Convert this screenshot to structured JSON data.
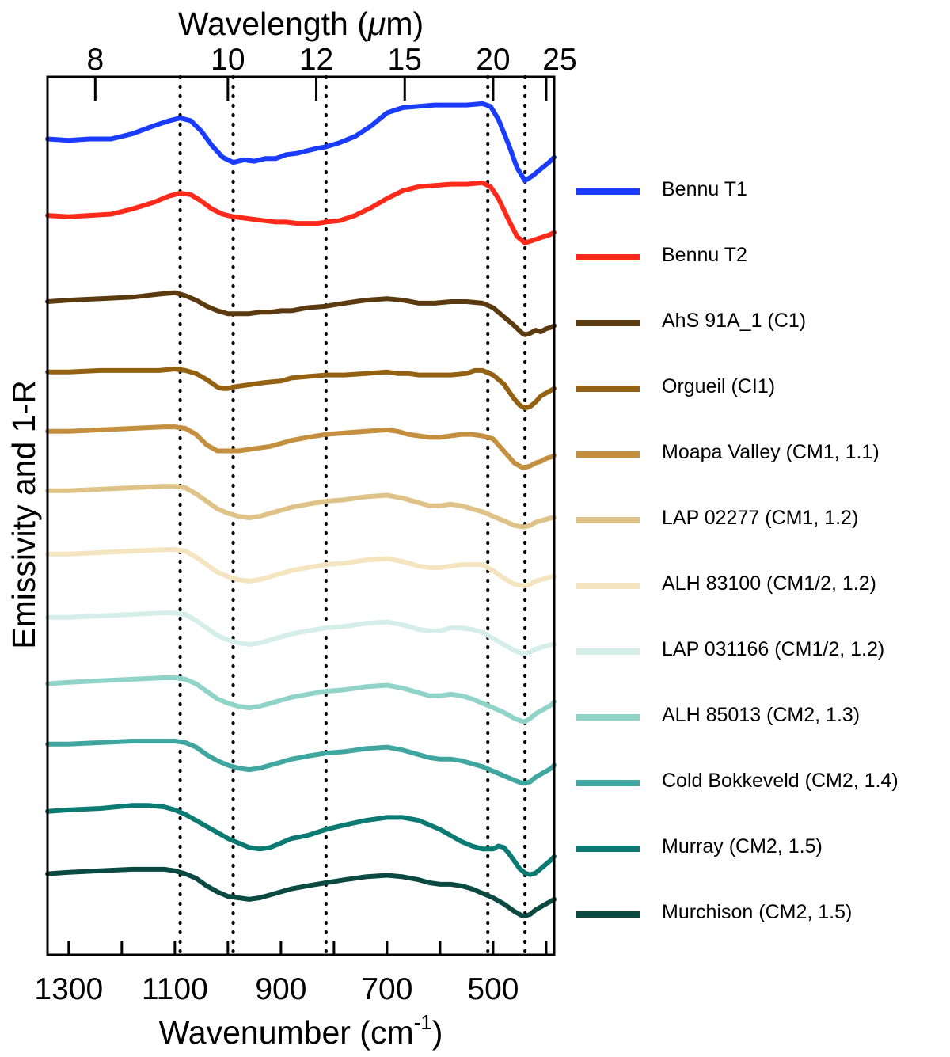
{
  "chart_data": {
    "type": "line",
    "title": "",
    "xlabel_bottom_base": "Wavenumber (cm",
    "xlabel_bottom_sup": "-1",
    "xlabel_bottom_end": ")",
    "xlabel_top_base": "Wavelength (",
    "xlabel_top_mu": "μ",
    "xlabel_top_end": "m)",
    "ylabel": "Emissivity and 1-R",
    "xlim": [
      1340,
      385
    ],
    "x_ticks": [
      1300,
      1100,
      900,
      700,
      500
    ],
    "top_ticks": [
      8,
      10,
      12,
      15,
      20,
      25
    ],
    "reference_lines_cm1": [
      1090,
      990,
      815,
      510,
      440
    ],
    "y_axis_ticks": "none (stacked, offset spectra)",
    "series": [
      {
        "name": "Bennu T1",
        "color": "#1a3cff",
        "x": [
          1340,
          1300,
          1260,
          1220,
          1180,
          1140,
          1110,
          1090,
          1070,
          1050,
          1030,
          1010,
          990,
          970,
          950,
          930,
          910,
          890,
          870,
          850,
          830,
          815,
          790,
          760,
          730,
          700,
          670,
          640,
          610,
          580,
          550,
          520,
          505,
          490,
          470,
          455,
          440,
          425,
          410,
          395,
          385
        ],
        "y": [
          0.3,
          0.29,
          0.3,
          0.3,
          0.34,
          0.4,
          0.44,
          0.46,
          0.44,
          0.36,
          0.25,
          0.16,
          0.12,
          0.14,
          0.13,
          0.15,
          0.15,
          0.18,
          0.19,
          0.21,
          0.23,
          0.24,
          0.27,
          0.32,
          0.4,
          0.5,
          0.54,
          0.55,
          0.56,
          0.56,
          0.56,
          0.57,
          0.55,
          0.45,
          0.25,
          0.08,
          -0.02,
          0.02,
          0.07,
          0.12,
          0.16
        ]
      },
      {
        "name": "Bennu T2",
        "color": "#ff2a1a",
        "x": [
          1340,
          1300,
          1260,
          1220,
          1180,
          1140,
          1110,
          1090,
          1070,
          1050,
          1030,
          1010,
          990,
          970,
          950,
          930,
          910,
          890,
          870,
          850,
          830,
          815,
          790,
          760,
          730,
          700,
          670,
          640,
          610,
          580,
          550,
          520,
          505,
          490,
          470,
          455,
          440,
          425,
          410,
          395,
          385
        ],
        "y": [
          0.29,
          0.28,
          0.29,
          0.3,
          0.34,
          0.39,
          0.44,
          0.46,
          0.45,
          0.4,
          0.34,
          0.3,
          0.28,
          0.27,
          0.26,
          0.25,
          0.24,
          0.24,
          0.23,
          0.23,
          0.23,
          0.24,
          0.25,
          0.29,
          0.35,
          0.42,
          0.48,
          0.51,
          0.52,
          0.53,
          0.53,
          0.54,
          0.51,
          0.42,
          0.25,
          0.13,
          0.08,
          0.1,
          0.12,
          0.14,
          0.16
        ]
      },
      {
        "name": "AhS 91A_1 (C1)",
        "color": "#5a3a0e",
        "x": [
          1340,
          1300,
          1240,
          1180,
          1130,
          1100,
          1080,
          1060,
          1040,
          1020,
          1000,
          980,
          960,
          940,
          920,
          900,
          880,
          850,
          815,
          780,
          740,
          700,
          670,
          640,
          610,
          580,
          550,
          520,
          500,
          480,
          460,
          445,
          440,
          430,
          420,
          410,
          400,
          390,
          385
        ],
        "y": [
          0.1,
          0.11,
          0.12,
          0.13,
          0.15,
          0.16,
          0.14,
          0.11,
          0.07,
          0.04,
          0.02,
          0.02,
          0.02,
          0.03,
          0.03,
          0.04,
          0.04,
          0.06,
          0.07,
          0.09,
          0.11,
          0.12,
          0.11,
          0.09,
          0.09,
          0.1,
          0.1,
          0.09,
          0.06,
          0.0,
          -0.06,
          -0.11,
          -0.12,
          -0.11,
          -0.09,
          -0.1,
          -0.08,
          -0.07,
          -0.06
        ]
      },
      {
        "name": "Orgueil (CI1)",
        "color": "#946012",
        "x": [
          1340,
          1300,
          1240,
          1180,
          1130,
          1100,
          1080,
          1060,
          1040,
          1020,
          1010,
          1000,
          990,
          970,
          950,
          930,
          900,
          880,
          850,
          815,
          780,
          740,
          700,
          680,
          660,
          640,
          610,
          580,
          550,
          535,
          520,
          500,
          480,
          460,
          450,
          440,
          430,
          420,
          410,
          400,
          390,
          385
        ],
        "y": [
          0.08,
          0.08,
          0.09,
          0.09,
          0.09,
          0.1,
          0.09,
          0.07,
          0.03,
          -0.02,
          -0.03,
          -0.03,
          -0.02,
          -0.01,
          0.0,
          0.01,
          0.02,
          0.04,
          0.05,
          0.06,
          0.06,
          0.07,
          0.08,
          0.07,
          0.07,
          0.06,
          0.06,
          0.06,
          0.07,
          0.09,
          0.09,
          0.06,
          0.0,
          -0.1,
          -0.14,
          -0.16,
          -0.15,
          -0.12,
          -0.08,
          -0.06,
          -0.04,
          -0.03
        ]
      },
      {
        "name": "Moapa Valley (CM1, 1.1)",
        "color": "#c48f3e",
        "x": [
          1340,
          1300,
          1240,
          1180,
          1120,
          1100,
          1080,
          1060,
          1040,
          1020,
          1000,
          990,
          980,
          960,
          940,
          920,
          900,
          880,
          850,
          815,
          780,
          740,
          700,
          680,
          660,
          640,
          620,
          600,
          580,
          560,
          540,
          520,
          500,
          480,
          460,
          445,
          440,
          430,
          420,
          410,
          400,
          390,
          385
        ],
        "y": [
          0.08,
          0.08,
          0.09,
          0.1,
          0.11,
          0.11,
          0.1,
          0.06,
          -0.01,
          -0.05,
          -0.05,
          -0.05,
          -0.05,
          -0.04,
          -0.03,
          -0.02,
          0.0,
          0.02,
          0.04,
          0.06,
          0.07,
          0.08,
          0.09,
          0.08,
          0.06,
          0.05,
          0.04,
          0.04,
          0.05,
          0.06,
          0.06,
          0.05,
          0.03,
          -0.05,
          -0.13,
          -0.16,
          -0.16,
          -0.15,
          -0.13,
          -0.12,
          -0.1,
          -0.09,
          -0.08
        ]
      },
      {
        "name": "LAP 02277 (CM1, 1.2)",
        "color": "#dfc288",
        "x": [
          1340,
          1300,
          1240,
          1180,
          1120,
          1100,
          1080,
          1060,
          1040,
          1020,
          1000,
          980,
          960,
          940,
          920,
          900,
          880,
          850,
          815,
          780,
          740,
          700,
          670,
          640,
          620,
          600,
          580,
          560,
          540,
          520,
          500,
          480,
          460,
          445,
          440,
          430,
          420,
          410,
          400,
          390,
          385
        ],
        "y": [
          0.08,
          0.08,
          0.09,
          0.1,
          0.11,
          0.11,
          0.1,
          0.06,
          0.01,
          -0.04,
          -0.07,
          -0.09,
          -0.1,
          -0.09,
          -0.07,
          -0.05,
          -0.03,
          -0.01,
          0.01,
          0.02,
          0.04,
          0.05,
          0.03,
          0.0,
          -0.02,
          -0.02,
          -0.01,
          -0.02,
          -0.04,
          -0.06,
          -0.09,
          -0.12,
          -0.15,
          -0.16,
          -0.16,
          -0.15,
          -0.13,
          -0.12,
          -0.11,
          -0.1,
          -0.1
        ]
      },
      {
        "name": "ALH 83100 (CM1/2, 1.2)",
        "color": "#f5e4c0",
        "x": [
          1340,
          1300,
          1240,
          1180,
          1120,
          1100,
          1080,
          1060,
          1040,
          1020,
          1000,
          980,
          960,
          940,
          920,
          900,
          880,
          850,
          815,
          780,
          740,
          700,
          670,
          640,
          620,
          600,
          580,
          560,
          540,
          520,
          500,
          480,
          460,
          445,
          440,
          430,
          420,
          410,
          400,
          390,
          385
        ],
        "y": [
          0.08,
          0.08,
          0.09,
          0.1,
          0.11,
          0.11,
          0.1,
          0.06,
          0.01,
          -0.04,
          -0.07,
          -0.09,
          -0.1,
          -0.09,
          -0.07,
          -0.05,
          -0.03,
          -0.01,
          0.01,
          0.02,
          0.04,
          0.05,
          0.03,
          0.0,
          -0.01,
          -0.01,
          0.0,
          0.01,
          0.01,
          0.01,
          -0.03,
          -0.08,
          -0.12,
          -0.13,
          -0.13,
          -0.12,
          -0.1,
          -0.09,
          -0.08,
          -0.07,
          -0.07
        ]
      },
      {
        "name": "LAP 031166 (CM1/2, 1.2)",
        "color": "#d6eee9",
        "x": [
          1340,
          1300,
          1240,
          1180,
          1120,
          1100,
          1080,
          1060,
          1040,
          1020,
          1000,
          980,
          960,
          940,
          920,
          900,
          880,
          850,
          815,
          780,
          740,
          700,
          670,
          640,
          620,
          600,
          580,
          560,
          540,
          520,
          500,
          480,
          460,
          445,
          440,
          430,
          420,
          410,
          400,
          390,
          385
        ],
        "y": [
          0.08,
          0.08,
          0.09,
          0.1,
          0.11,
          0.11,
          0.1,
          0.06,
          0.01,
          -0.04,
          -0.07,
          -0.09,
          -0.1,
          -0.09,
          -0.07,
          -0.05,
          -0.03,
          -0.01,
          0.01,
          0.02,
          0.04,
          0.05,
          0.03,
          0.0,
          -0.01,
          -0.01,
          0.01,
          0.01,
          0.0,
          -0.02,
          -0.06,
          -0.1,
          -0.14,
          -0.16,
          -0.16,
          -0.15,
          -0.13,
          -0.12,
          -0.11,
          -0.1,
          -0.1
        ]
      },
      {
        "name": "ALH 85013 (CM2, 1.3)",
        "color": "#8fd3c9",
        "x": [
          1340,
          1300,
          1240,
          1180,
          1120,
          1100,
          1080,
          1060,
          1040,
          1020,
          1000,
          980,
          960,
          940,
          920,
          900,
          880,
          850,
          815,
          780,
          740,
          700,
          670,
          640,
          620,
          600,
          580,
          560,
          540,
          520,
          500,
          480,
          460,
          445,
          440,
          430,
          420,
          410,
          400,
          390,
          385
        ],
        "y": [
          0.06,
          0.07,
          0.08,
          0.09,
          0.1,
          0.1,
          0.09,
          0.06,
          0.01,
          -0.04,
          -0.07,
          -0.09,
          -0.1,
          -0.09,
          -0.07,
          -0.05,
          -0.03,
          -0.01,
          0.01,
          0.02,
          0.04,
          0.05,
          0.03,
          0.0,
          -0.02,
          -0.02,
          -0.01,
          -0.02,
          -0.04,
          -0.07,
          -0.1,
          -0.13,
          -0.17,
          -0.19,
          -0.19,
          -0.17,
          -0.14,
          -0.12,
          -0.1,
          -0.08,
          -0.06
        ]
      },
      {
        "name": "Cold Bokkeveld (CM2, 1.4)",
        "color": "#3fa6a0",
        "x": [
          1340,
          1300,
          1240,
          1180,
          1120,
          1100,
          1080,
          1060,
          1040,
          1020,
          1000,
          980,
          960,
          940,
          920,
          900,
          880,
          850,
          815,
          780,
          740,
          700,
          670,
          640,
          620,
          600,
          580,
          560,
          540,
          520,
          500,
          480,
          460,
          445,
          440,
          430,
          420,
          410,
          400,
          390,
          385
        ],
        "y": [
          0.08,
          0.08,
          0.09,
          0.1,
          0.1,
          0.1,
          0.09,
          0.06,
          0.01,
          -0.03,
          -0.06,
          -0.08,
          -0.09,
          -0.08,
          -0.06,
          -0.04,
          -0.02,
          0.0,
          0.02,
          0.03,
          0.05,
          0.06,
          0.04,
          0.01,
          -0.01,
          -0.02,
          -0.02,
          -0.03,
          -0.05,
          -0.07,
          -0.1,
          -0.13,
          -0.16,
          -0.18,
          -0.18,
          -0.17,
          -0.14,
          -0.12,
          -0.1,
          -0.08,
          -0.06
        ]
      },
      {
        "name": "Murray (CM2, 1.5)",
        "color": "#0b7a72",
        "x": [
          1340,
          1300,
          1240,
          1180,
          1150,
          1120,
          1100,
          1080,
          1060,
          1040,
          1020,
          1000,
          980,
          960,
          940,
          920,
          900,
          880,
          850,
          815,
          780,
          740,
          700,
          670,
          640,
          620,
          600,
          580,
          560,
          540,
          520,
          500,
          490,
          480,
          470,
          460,
          450,
          440,
          430,
          420,
          410,
          400,
          390,
          385
        ],
        "y": [
          0.08,
          0.09,
          0.1,
          0.12,
          0.12,
          0.11,
          0.09,
          0.06,
          0.02,
          -0.02,
          -0.06,
          -0.1,
          -0.13,
          -0.16,
          -0.17,
          -0.16,
          -0.13,
          -0.1,
          -0.08,
          -0.04,
          -0.01,
          0.02,
          0.04,
          0.04,
          0.02,
          -0.01,
          -0.04,
          -0.08,
          -0.12,
          -0.15,
          -0.17,
          -0.17,
          -0.15,
          -0.16,
          -0.2,
          -0.25,
          -0.3,
          -0.33,
          -0.34,
          -0.33,
          -0.3,
          -0.27,
          -0.24,
          -0.22
        ]
      },
      {
        "name": "Murchison (CM2, 1.5)",
        "color": "#0a4a42",
        "x": [
          1340,
          1300,
          1240,
          1180,
          1120,
          1100,
          1080,
          1060,
          1040,
          1020,
          1000,
          980,
          960,
          940,
          920,
          900,
          880,
          850,
          815,
          780,
          740,
          700,
          670,
          640,
          620,
          600,
          580,
          560,
          540,
          520,
          500,
          480,
          460,
          445,
          440,
          430,
          420,
          410,
          400,
          390,
          385
        ],
        "y": [
          0.06,
          0.07,
          0.08,
          0.09,
          0.09,
          0.08,
          0.06,
          0.03,
          -0.02,
          -0.06,
          -0.09,
          -0.1,
          -0.11,
          -0.1,
          -0.08,
          -0.06,
          -0.04,
          -0.02,
          0.0,
          0.02,
          0.04,
          0.05,
          0.04,
          0.02,
          0.0,
          -0.01,
          -0.01,
          -0.02,
          -0.04,
          -0.07,
          -0.1,
          -0.14,
          -0.19,
          -0.22,
          -0.22,
          -0.21,
          -0.18,
          -0.16,
          -0.14,
          -0.12,
          -0.11
        ]
      }
    ]
  }
}
